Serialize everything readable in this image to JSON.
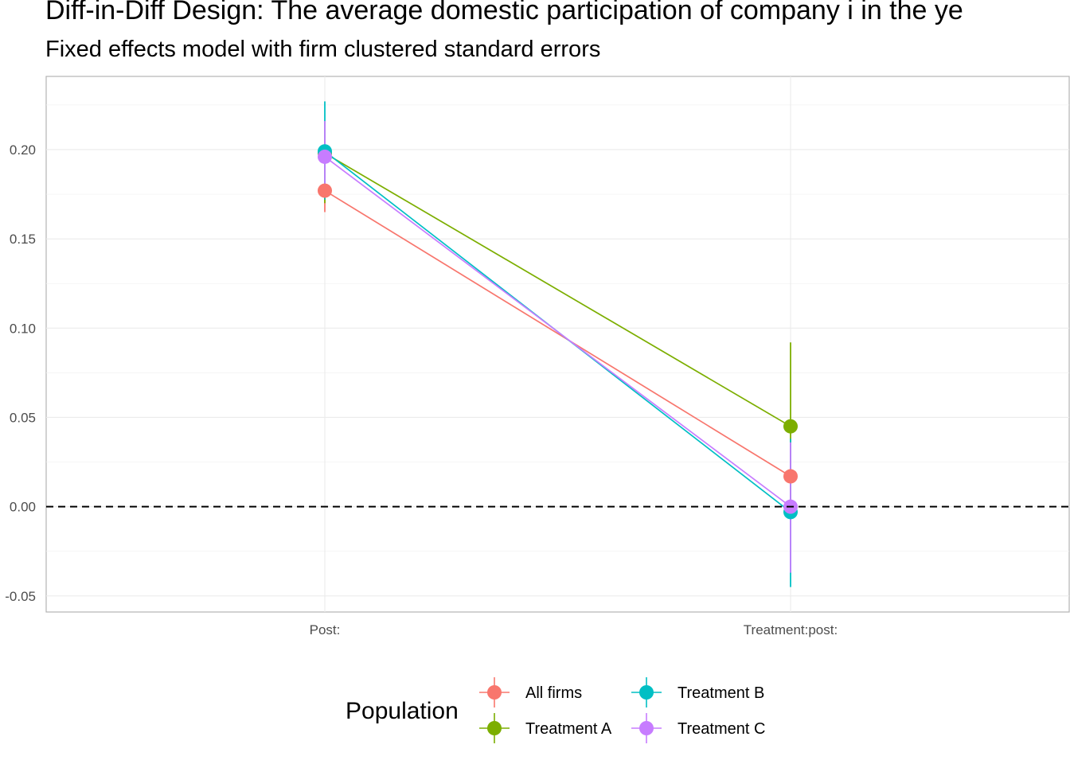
{
  "chart_data": {
    "type": "line",
    "title": "Diff-in-Diff Design: The average domestic participation of company i in the ye",
    "subtitle": "Fixed effects model with firm clustered standard errors",
    "categories": [
      "Post:",
      "Treatment:post:"
    ],
    "ylim": [
      -0.059,
      0.241
    ],
    "y_ticks": [
      -0.05,
      0.0,
      0.05,
      0.1,
      0.15,
      0.2
    ],
    "y_tick_labels": [
      "-0.05",
      "0.00",
      "0.05",
      "0.10",
      "0.15",
      "0.20"
    ],
    "grid": true,
    "reference_line": {
      "y": 0,
      "style": "dashed",
      "color": "#000000"
    },
    "legend": {
      "title": "Population",
      "placement": "bottom"
    },
    "series": [
      {
        "name": "All firms",
        "color": "#F8766D",
        "values": [
          0.177,
          0.017
        ],
        "ci_low": [
          0.165,
          0.005
        ],
        "ci_high": [
          0.19,
          0.029
        ]
      },
      {
        "name": "Treatment A",
        "color": "#7CAE00",
        "values": [
          0.198,
          0.045
        ],
        "ci_low": [
          0.17,
          0.0
        ],
        "ci_high": [
          0.216,
          0.092
        ]
      },
      {
        "name": "Treatment B",
        "color": "#00BFC4",
        "values": [
          0.199,
          -0.003
        ],
        "ci_low": [
          0.172,
          -0.045
        ],
        "ci_high": [
          0.227,
          0.038
        ]
      },
      {
        "name": "Treatment C",
        "color": "#C77CFF",
        "values": [
          0.196,
          0.0
        ],
        "ci_low": [
          0.176,
          -0.037
        ],
        "ci_high": [
          0.216,
          0.036
        ]
      }
    ]
  }
}
